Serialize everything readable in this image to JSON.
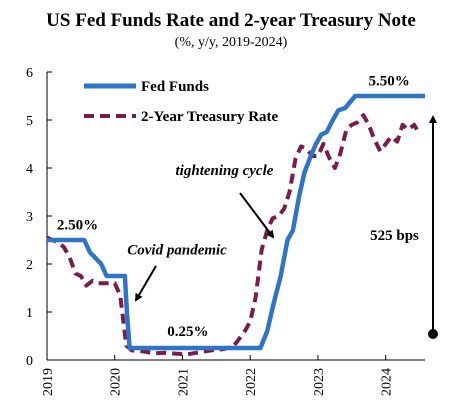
{
  "chart_data": {
    "type": "line",
    "title": "US Fed Funds Rate and 2-year Treasury Note",
    "subtitle": "(%, y/y, 2019-2024)",
    "xlabel": "",
    "ylabel": "",
    "xlim": [
      2019.0,
      2024.58
    ],
    "ylim": [
      0,
      6
    ],
    "x_ticks": [
      "2019",
      "2020",
      "2021",
      "2022",
      "2023",
      "2024"
    ],
    "y_ticks": [
      "0",
      "1",
      "2",
      "3",
      "4",
      "5",
      "6"
    ],
    "grid": false,
    "legend_position": "top-left",
    "series": [
      {
        "name": "Fed Funds",
        "style": "solid",
        "color": "#2e75c9",
        "points": [
          [
            2019.0,
            2.5
          ],
          [
            2019.55,
            2.5
          ],
          [
            2019.63,
            2.25
          ],
          [
            2019.8,
            2.0
          ],
          [
            2019.88,
            1.75
          ],
          [
            2020.15,
            1.75
          ],
          [
            2020.18,
            1.0
          ],
          [
            2020.22,
            0.25
          ],
          [
            2022.15,
            0.25
          ],
          [
            2022.25,
            0.6
          ],
          [
            2022.35,
            1.2
          ],
          [
            2022.45,
            1.75
          ],
          [
            2022.55,
            2.5
          ],
          [
            2022.63,
            2.7
          ],
          [
            2022.72,
            3.4
          ],
          [
            2022.8,
            3.9
          ],
          [
            2022.88,
            4.2
          ],
          [
            2022.97,
            4.5
          ],
          [
            2023.05,
            4.7
          ],
          [
            2023.13,
            4.75
          ],
          [
            2023.2,
            4.95
          ],
          [
            2023.3,
            5.2
          ],
          [
            2023.4,
            5.25
          ],
          [
            2023.55,
            5.5
          ],
          [
            2024.58,
            5.5
          ]
        ]
      },
      {
        "name": "2-Year Treasury Rate",
        "style": "dashed",
        "color": "#7b1a4c",
        "points": [
          [
            2019.0,
            2.55
          ],
          [
            2019.08,
            2.5
          ],
          [
            2019.17,
            2.45
          ],
          [
            2019.25,
            2.35
          ],
          [
            2019.33,
            2.15
          ],
          [
            2019.42,
            1.8
          ],
          [
            2019.5,
            1.75
          ],
          [
            2019.58,
            1.55
          ],
          [
            2019.67,
            1.65
          ],
          [
            2019.75,
            1.6
          ],
          [
            2019.83,
            1.6
          ],
          [
            2019.92,
            1.6
          ],
          [
            2020.0,
            1.6
          ],
          [
            2020.08,
            1.35
          ],
          [
            2020.17,
            0.3
          ],
          [
            2020.25,
            0.2
          ],
          [
            2020.42,
            0.18
          ],
          [
            2020.58,
            0.14
          ],
          [
            2020.75,
            0.15
          ],
          [
            2020.92,
            0.13
          ],
          [
            2021.08,
            0.12
          ],
          [
            2021.25,
            0.16
          ],
          [
            2021.42,
            0.2
          ],
          [
            2021.58,
            0.22
          ],
          [
            2021.75,
            0.28
          ],
          [
            2021.92,
            0.6
          ],
          [
            2022.0,
            0.8
          ],
          [
            2022.08,
            1.3
          ],
          [
            2022.17,
            2.3
          ],
          [
            2022.25,
            2.7
          ],
          [
            2022.33,
            2.95
          ],
          [
            2022.42,
            3.0
          ],
          [
            2022.5,
            3.15
          ],
          [
            2022.58,
            3.5
          ],
          [
            2022.67,
            4.2
          ],
          [
            2022.75,
            4.45
          ],
          [
            2022.83,
            4.4
          ],
          [
            2022.92,
            4.25
          ],
          [
            2023.0,
            4.25
          ],
          [
            2023.08,
            4.5
          ],
          [
            2023.17,
            4.2
          ],
          [
            2023.25,
            4.0
          ],
          [
            2023.33,
            4.3
          ],
          [
            2023.42,
            4.8
          ],
          [
            2023.5,
            4.9
          ],
          [
            2023.58,
            4.95
          ],
          [
            2023.67,
            5.1
          ],
          [
            2023.75,
            4.9
          ],
          [
            2023.83,
            4.6
          ],
          [
            2023.92,
            4.35
          ],
          [
            2024.0,
            4.5
          ],
          [
            2024.08,
            4.65
          ],
          [
            2024.17,
            4.55
          ],
          [
            2024.25,
            4.9
          ],
          [
            2024.33,
            4.8
          ],
          [
            2024.42,
            4.9
          ],
          [
            2024.5,
            4.7
          ]
        ]
      }
    ],
    "annotations": [
      {
        "text": "2.50%",
        "x": 2019.45,
        "y": 2.72
      },
      {
        "text": "0.25%",
        "x": 2021.08,
        "y": 0.5
      },
      {
        "text": "5.50%",
        "x": 2024.05,
        "y": 5.72
      },
      {
        "text": "525 bps",
        "x": 2024.13,
        "y": 2.5
      },
      {
        "text": "Covid pandemic",
        "x": 2020.92,
        "y": 2.2,
        "italic": true
      },
      {
        "text": "tightening cycle",
        "x": 2021.62,
        "y": 3.85,
        "italic": true
      }
    ]
  }
}
